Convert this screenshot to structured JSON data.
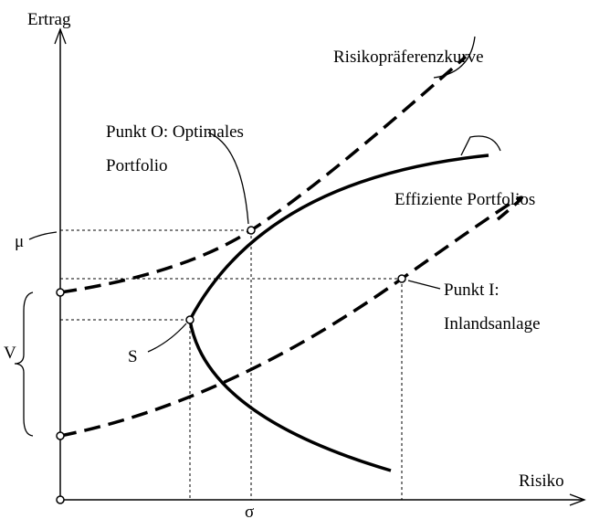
{
  "axes": {
    "y_label": "Ertrag",
    "x_label": "Risiko",
    "mu": "μ",
    "sigma": "σ",
    "v": "V"
  },
  "labels": {
    "preference_curve": "Risikopräferenzkurve",
    "point_o_line1": "Punkt O: Optimales",
    "point_o_line2": "Portfolio",
    "efficient": "Effiziente Portfolios",
    "point_i_line1": "Punkt I:",
    "point_i_line2": "Inlandsanlage",
    "s": "S"
  }
}
